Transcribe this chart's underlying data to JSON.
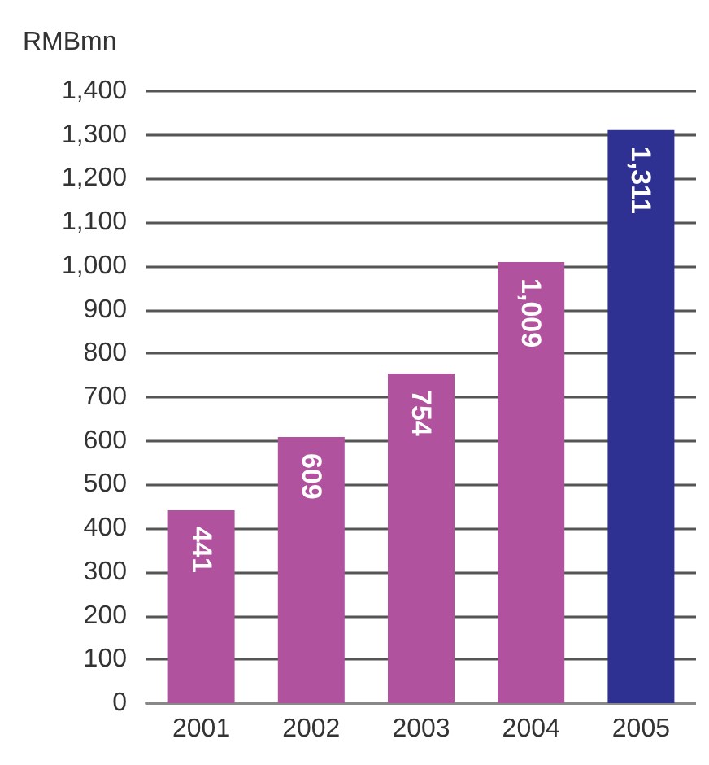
{
  "chart_data": {
    "type": "bar",
    "ylabel": "RMBmn",
    "categories": [
      "2001",
      "2002",
      "2003",
      "2004",
      "2005"
    ],
    "values": [
      441,
      609,
      754,
      1009,
      1311
    ],
    "colors": [
      "#b0529e",
      "#b0529e",
      "#b0529e",
      "#b0529e",
      "#2e3192"
    ],
    "value_labels": [
      "441",
      "609",
      "754",
      "1,009",
      "1,311"
    ],
    "ylim": [
      0,
      1400
    ],
    "yticks": [
      0,
      100,
      200,
      300,
      400,
      500,
      600,
      700,
      800,
      900,
      {
        "value": 1000,
        "label": "1,000"
      },
      {
        "value": 1100,
        "label": "1,100"
      },
      {
        "value": 1200,
        "label": "1,200"
      },
      {
        "value": 1300,
        "label": "1,300"
      },
      {
        "value": 1400,
        "label": "1,400"
      }
    ],
    "grid": "y"
  }
}
